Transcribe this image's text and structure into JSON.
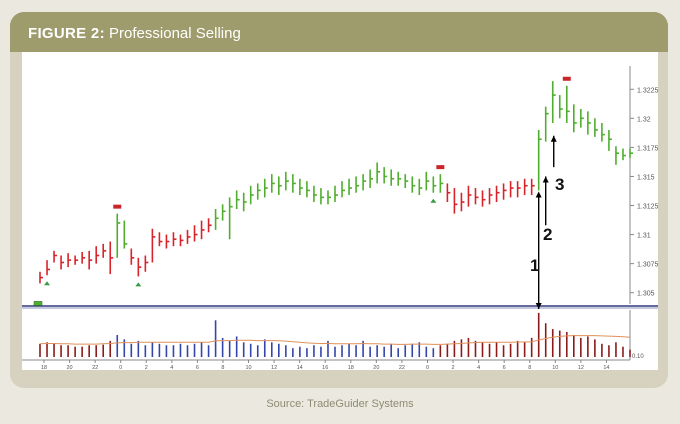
{
  "figure": {
    "label": "FIGURE 2",
    "sep": ":",
    "title": "Professional Selling"
  },
  "source": "Source: TradeGuider Systems",
  "colors": {
    "up": "#4fae2d",
    "down": "#d8232a",
    "volume_down": "#8b1a1a",
    "volume_up": "#3344aa",
    "average": "#e0905a",
    "signal": "#c8262a",
    "triangle": "#3a9a45"
  },
  "chart_data": {
    "type": "bar",
    "description_axis_right": [
      1.305,
      1.3075,
      1.31,
      1.3125,
      1.315,
      1.3175,
      1.32,
      1.3225
    ],
    "y_tick_labels": [
      "1.3225",
      "1.32",
      "1.3175",
      "1.315",
      "1.3125",
      "1.31",
      "1.3075",
      "1.305"
    ],
    "ylim": [
      1.3042,
      1.3245
    ],
    "x_tick_labels": [
      "18",
      "20",
      "22",
      "0",
      "2",
      "4",
      "6",
      "8",
      "10",
      "12",
      "14",
      "16",
      "18",
      "20",
      "22",
      "0",
      "2",
      "4",
      "6",
      "8",
      "10",
      "12",
      "14"
    ],
    "annotations": [
      "1",
      "2",
      "3"
    ],
    "volume_axis_label": "0.10",
    "bars": [
      {
        "h": 1.3068,
        "l": 1.3058,
        "c": 1.3063,
        "dir": "down"
      },
      {
        "h": 1.3078,
        "l": 1.3065,
        "c": 1.307,
        "dir": "down"
      },
      {
        "h": 1.3086,
        "l": 1.3076,
        "c": 1.3082,
        "dir": "down"
      },
      {
        "h": 1.3082,
        "l": 1.307,
        "c": 1.3076,
        "dir": "down"
      },
      {
        "h": 1.3084,
        "l": 1.3072,
        "c": 1.3078,
        "dir": "down"
      },
      {
        "h": 1.3082,
        "l": 1.3074,
        "c": 1.3078,
        "dir": "down"
      },
      {
        "h": 1.3085,
        "l": 1.3075,
        "c": 1.308,
        "dir": "down"
      },
      {
        "h": 1.3086,
        "l": 1.307,
        "c": 1.3078,
        "dir": "down"
      },
      {
        "h": 1.309,
        "l": 1.3075,
        "c": 1.3082,
        "dir": "down"
      },
      {
        "h": 1.3092,
        "l": 1.308,
        "c": 1.3086,
        "dir": "down"
      },
      {
        "h": 1.3094,
        "l": 1.3066,
        "c": 1.308,
        "dir": "down"
      },
      {
        "h": 1.3118,
        "l": 1.308,
        "c": 1.311,
        "dir": "up"
      },
      {
        "h": 1.3112,
        "l": 1.3088,
        "c": 1.3092,
        "dir": "up"
      },
      {
        "h": 1.3088,
        "l": 1.3074,
        "c": 1.308,
        "dir": "down"
      },
      {
        "h": 1.308,
        "l": 1.3064,
        "c": 1.3072,
        "dir": "down"
      },
      {
        "h": 1.3082,
        "l": 1.3068,
        "c": 1.3076,
        "dir": "down"
      },
      {
        "h": 1.3105,
        "l": 1.3076,
        "c": 1.3098,
        "dir": "down"
      },
      {
        "h": 1.3102,
        "l": 1.309,
        "c": 1.3094,
        "dir": "down"
      },
      {
        "h": 1.31,
        "l": 1.3088,
        "c": 1.3094,
        "dir": "down"
      },
      {
        "h": 1.3102,
        "l": 1.309,
        "c": 1.3096,
        "dir": "down"
      },
      {
        "h": 1.31,
        "l": 1.309,
        "c": 1.3095,
        "dir": "down"
      },
      {
        "h": 1.3104,
        "l": 1.3092,
        "c": 1.3098,
        "dir": "down"
      },
      {
        "h": 1.3108,
        "l": 1.3094,
        "c": 1.31,
        "dir": "down"
      },
      {
        "h": 1.3112,
        "l": 1.3096,
        "c": 1.3104,
        "dir": "down"
      },
      {
        "h": 1.3114,
        "l": 1.3102,
        "c": 1.3108,
        "dir": "down"
      },
      {
        "h": 1.3122,
        "l": 1.3104,
        "c": 1.3114,
        "dir": "up"
      },
      {
        "h": 1.3126,
        "l": 1.3112,
        "c": 1.312,
        "dir": "up"
      },
      {
        "h": 1.3132,
        "l": 1.3096,
        "c": 1.3124,
        "dir": "up"
      },
      {
        "h": 1.3138,
        "l": 1.3122,
        "c": 1.313,
        "dir": "up"
      },
      {
        "h": 1.3136,
        "l": 1.312,
        "c": 1.3128,
        "dir": "up"
      },
      {
        "h": 1.3142,
        "l": 1.3126,
        "c": 1.3134,
        "dir": "up"
      },
      {
        "h": 1.3144,
        "l": 1.313,
        "c": 1.3138,
        "dir": "up"
      },
      {
        "h": 1.3148,
        "l": 1.3132,
        "c": 1.314,
        "dir": "up"
      },
      {
        "h": 1.3152,
        "l": 1.3136,
        "c": 1.3144,
        "dir": "up"
      },
      {
        "h": 1.315,
        "l": 1.3134,
        "c": 1.3142,
        "dir": "up"
      },
      {
        "h": 1.3154,
        "l": 1.3138,
        "c": 1.3146,
        "dir": "up"
      },
      {
        "h": 1.3152,
        "l": 1.3136,
        "c": 1.3144,
        "dir": "up"
      },
      {
        "h": 1.3148,
        "l": 1.3134,
        "c": 1.314,
        "dir": "up"
      },
      {
        "h": 1.3146,
        "l": 1.3132,
        "c": 1.3138,
        "dir": "up"
      },
      {
        "h": 1.3142,
        "l": 1.3128,
        "c": 1.3134,
        "dir": "up"
      },
      {
        "h": 1.314,
        "l": 1.3126,
        "c": 1.3132,
        "dir": "up"
      },
      {
        "h": 1.3138,
        "l": 1.3126,
        "c": 1.3132,
        "dir": "up"
      },
      {
        "h": 1.3142,
        "l": 1.3128,
        "c": 1.3134,
        "dir": "up"
      },
      {
        "h": 1.3146,
        "l": 1.3132,
        "c": 1.3138,
        "dir": "up"
      },
      {
        "h": 1.3148,
        "l": 1.3134,
        "c": 1.314,
        "dir": "up"
      },
      {
        "h": 1.315,
        "l": 1.3136,
        "c": 1.3142,
        "dir": "up"
      },
      {
        "h": 1.3152,
        "l": 1.3138,
        "c": 1.3146,
        "dir": "up"
      },
      {
        "h": 1.3156,
        "l": 1.314,
        "c": 1.3148,
        "dir": "up"
      },
      {
        "h": 1.3162,
        "l": 1.3144,
        "c": 1.3154,
        "dir": "up"
      },
      {
        "h": 1.3158,
        "l": 1.3144,
        "c": 1.315,
        "dir": "up"
      },
      {
        "h": 1.3156,
        "l": 1.3142,
        "c": 1.3148,
        "dir": "up"
      },
      {
        "h": 1.3154,
        "l": 1.3142,
        "c": 1.3148,
        "dir": "up"
      },
      {
        "h": 1.3152,
        "l": 1.314,
        "c": 1.3146,
        "dir": "up"
      },
      {
        "h": 1.315,
        "l": 1.3136,
        "c": 1.3142,
        "dir": "up"
      },
      {
        "h": 1.3148,
        "l": 1.3134,
        "c": 1.314,
        "dir": "up"
      },
      {
        "h": 1.3154,
        "l": 1.3138,
        "c": 1.3146,
        "dir": "up"
      },
      {
        "h": 1.315,
        "l": 1.3136,
        "c": 1.3142,
        "dir": "up"
      },
      {
        "h": 1.3152,
        "l": 1.3136,
        "c": 1.3144,
        "dir": "up"
      },
      {
        "h": 1.3144,
        "l": 1.3128,
        "c": 1.3136,
        "dir": "down"
      },
      {
        "h": 1.314,
        "l": 1.3118,
        "c": 1.3126,
        "dir": "down"
      },
      {
        "h": 1.3136,
        "l": 1.312,
        "c": 1.3128,
        "dir": "down"
      },
      {
        "h": 1.3142,
        "l": 1.3124,
        "c": 1.3134,
        "dir": "down"
      },
      {
        "h": 1.314,
        "l": 1.3126,
        "c": 1.3132,
        "dir": "down"
      },
      {
        "h": 1.3138,
        "l": 1.3124,
        "c": 1.313,
        "dir": "down"
      },
      {
        "h": 1.314,
        "l": 1.3126,
        "c": 1.3134,
        "dir": "down"
      },
      {
        "h": 1.3142,
        "l": 1.3128,
        "c": 1.3136,
        "dir": "down"
      },
      {
        "h": 1.3144,
        "l": 1.313,
        "c": 1.3138,
        "dir": "down"
      },
      {
        "h": 1.3146,
        "l": 1.3132,
        "c": 1.314,
        "dir": "down"
      },
      {
        "h": 1.3146,
        "l": 1.3132,
        "c": 1.314,
        "dir": "down"
      },
      {
        "h": 1.3148,
        "l": 1.3134,
        "c": 1.3142,
        "dir": "down"
      },
      {
        "h": 1.3148,
        "l": 1.3134,
        "c": 1.3142,
        "dir": "down"
      },
      {
        "h": 1.319,
        "l": 1.3138,
        "c": 1.3182,
        "dir": "up"
      },
      {
        "h": 1.321,
        "l": 1.318,
        "c": 1.3204,
        "dir": "up"
      },
      {
        "h": 1.3232,
        "l": 1.3196,
        "c": 1.322,
        "dir": "up"
      },
      {
        "h": 1.322,
        "l": 1.32,
        "c": 1.3208,
        "dir": "up"
      },
      {
        "h": 1.3228,
        "l": 1.3196,
        "c": 1.3206,
        "dir": "up"
      },
      {
        "h": 1.3212,
        "l": 1.3188,
        "c": 1.3196,
        "dir": "up"
      },
      {
        "h": 1.3208,
        "l": 1.3192,
        "c": 1.32,
        "dir": "up"
      },
      {
        "h": 1.3206,
        "l": 1.3186,
        "c": 1.3196,
        "dir": "up"
      },
      {
        "h": 1.32,
        "l": 1.3184,
        "c": 1.319,
        "dir": "up"
      },
      {
        "h": 1.3196,
        "l": 1.318,
        "c": 1.3186,
        "dir": "up"
      },
      {
        "h": 1.319,
        "l": 1.3172,
        "c": 1.3182,
        "dir": "up"
      },
      {
        "h": 1.3176,
        "l": 1.316,
        "c": 1.317,
        "dir": "up"
      },
      {
        "h": 1.3174,
        "l": 1.3164,
        "c": 1.3168,
        "dir": "up"
      },
      {
        "h": 1.3174,
        "l": 1.3166,
        "c": 1.317,
        "dir": "up"
      }
    ],
    "volume": [
      {
        "v": 0.45,
        "dir": "down"
      },
      {
        "v": 0.5,
        "dir": "down"
      },
      {
        "v": 0.45,
        "dir": "down"
      },
      {
        "v": 0.4,
        "dir": "down"
      },
      {
        "v": 0.4,
        "dir": "down"
      },
      {
        "v": 0.35,
        "dir": "down"
      },
      {
        "v": 0.35,
        "dir": "down"
      },
      {
        "v": 0.4,
        "dir": "down"
      },
      {
        "v": 0.4,
        "dir": "down"
      },
      {
        "v": 0.42,
        "dir": "down"
      },
      {
        "v": 0.55,
        "dir": "down"
      },
      {
        "v": 0.75,
        "dir": "up"
      },
      {
        "v": 0.6,
        "dir": "up"
      },
      {
        "v": 0.45,
        "dir": "up"
      },
      {
        "v": 0.55,
        "dir": "up"
      },
      {
        "v": 0.4,
        "dir": "up"
      },
      {
        "v": 0.5,
        "dir": "up"
      },
      {
        "v": 0.45,
        "dir": "up"
      },
      {
        "v": 0.4,
        "dir": "up"
      },
      {
        "v": 0.4,
        "dir": "up"
      },
      {
        "v": 0.45,
        "dir": "up"
      },
      {
        "v": 0.4,
        "dir": "up"
      },
      {
        "v": 0.45,
        "dir": "up"
      },
      {
        "v": 0.5,
        "dir": "up"
      },
      {
        "v": 0.4,
        "dir": "up"
      },
      {
        "v": 1.25,
        "dir": "up"
      },
      {
        "v": 0.65,
        "dir": "up"
      },
      {
        "v": 0.55,
        "dir": "up"
      },
      {
        "v": 0.7,
        "dir": "up"
      },
      {
        "v": 0.5,
        "dir": "up"
      },
      {
        "v": 0.45,
        "dir": "up"
      },
      {
        "v": 0.4,
        "dir": "up"
      },
      {
        "v": 0.6,
        "dir": "up"
      },
      {
        "v": 0.5,
        "dir": "up"
      },
      {
        "v": 0.45,
        "dir": "up"
      },
      {
        "v": 0.4,
        "dir": "up"
      },
      {
        "v": 0.3,
        "dir": "up"
      },
      {
        "v": 0.35,
        "dir": "up"
      },
      {
        "v": 0.3,
        "dir": "up"
      },
      {
        "v": 0.4,
        "dir": "up"
      },
      {
        "v": 0.35,
        "dir": "up"
      },
      {
        "v": 0.55,
        "dir": "up"
      },
      {
        "v": 0.35,
        "dir": "up"
      },
      {
        "v": 0.4,
        "dir": "up"
      },
      {
        "v": 0.45,
        "dir": "up"
      },
      {
        "v": 0.4,
        "dir": "up"
      },
      {
        "v": 0.55,
        "dir": "up"
      },
      {
        "v": 0.35,
        "dir": "up"
      },
      {
        "v": 0.4,
        "dir": "up"
      },
      {
        "v": 0.35,
        "dir": "up"
      },
      {
        "v": 0.45,
        "dir": "up"
      },
      {
        "v": 0.3,
        "dir": "up"
      },
      {
        "v": 0.4,
        "dir": "up"
      },
      {
        "v": 0.45,
        "dir": "up"
      },
      {
        "v": 0.5,
        "dir": "up"
      },
      {
        "v": 0.35,
        "dir": "up"
      },
      {
        "v": 0.3,
        "dir": "up"
      },
      {
        "v": 0.4,
        "dir": "down"
      },
      {
        "v": 0.45,
        "dir": "down"
      },
      {
        "v": 0.55,
        "dir": "down"
      },
      {
        "v": 0.6,
        "dir": "down"
      },
      {
        "v": 0.65,
        "dir": "down"
      },
      {
        "v": 0.55,
        "dir": "down"
      },
      {
        "v": 0.5,
        "dir": "down"
      },
      {
        "v": 0.45,
        "dir": "down"
      },
      {
        "v": 0.5,
        "dir": "down"
      },
      {
        "v": 0.4,
        "dir": "down"
      },
      {
        "v": 0.45,
        "dir": "down"
      },
      {
        "v": 0.55,
        "dir": "down"
      },
      {
        "v": 0.5,
        "dir": "down"
      },
      {
        "v": 0.65,
        "dir": "down"
      },
      {
        "v": 1.5,
        "dir": "down"
      },
      {
        "v": 1.15,
        "dir": "down"
      },
      {
        "v": 0.95,
        "dir": "down"
      },
      {
        "v": 0.9,
        "dir": "down"
      },
      {
        "v": 0.85,
        "dir": "down"
      },
      {
        "v": 0.75,
        "dir": "down"
      },
      {
        "v": 0.65,
        "dir": "down"
      },
      {
        "v": 0.7,
        "dir": "down"
      },
      {
        "v": 0.6,
        "dir": "down"
      },
      {
        "v": 0.45,
        "dir": "down"
      },
      {
        "v": 0.4,
        "dir": "down"
      },
      {
        "v": 0.5,
        "dir": "down"
      },
      {
        "v": 0.35,
        "dir": "down"
      },
      {
        "v": 0.25,
        "dir": "down"
      }
    ],
    "signals_top": [
      11,
      57,
      75
    ],
    "signals_bottom_triangles": [
      1,
      14,
      56
    ],
    "signal_bottom_left_box": 0,
    "ma_volume": [
      0.45,
      0.46,
      0.46,
      0.45,
      0.45,
      0.44,
      0.44,
      0.44,
      0.44,
      0.45,
      0.46,
      0.48,
      0.49,
      0.49,
      0.5,
      0.5,
      0.5,
      0.5,
      0.5,
      0.5,
      0.5,
      0.5,
      0.5,
      0.5,
      0.5,
      0.55,
      0.56,
      0.56,
      0.57,
      0.57,
      0.57,
      0.56,
      0.56,
      0.56,
      0.55,
      0.54,
      0.52,
      0.5,
      0.48,
      0.47,
      0.46,
      0.46,
      0.45,
      0.45,
      0.45,
      0.45,
      0.46,
      0.45,
      0.45,
      0.44,
      0.44,
      0.43,
      0.43,
      0.44,
      0.44,
      0.44,
      0.43,
      0.43,
      0.44,
      0.45,
      0.46,
      0.48,
      0.49,
      0.5,
      0.5,
      0.5,
      0.5,
      0.5,
      0.51,
      0.51,
      0.52,
      0.58,
      0.63,
      0.67,
      0.7,
      0.72,
      0.73,
      0.73,
      0.73,
      0.73,
      0.72,
      0.71,
      0.7,
      0.69,
      0.67
    ]
  }
}
